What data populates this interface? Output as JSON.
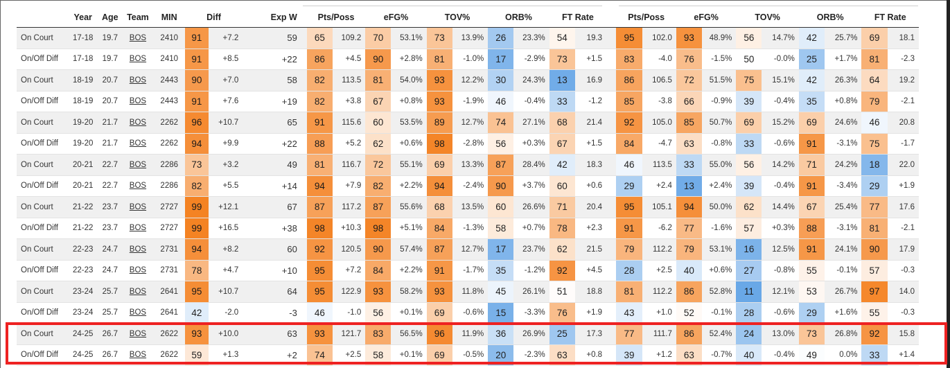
{
  "headers": [
    "",
    "Year",
    "Age",
    "Team",
    "MIN",
    "Diff",
    "",
    "Exp W",
    "Pts/Poss",
    "",
    "eFG%",
    "",
    "TOV%",
    "",
    "ORB%",
    "",
    "FT Rate",
    "",
    "Pts/Poss",
    "",
    "eFG%",
    "",
    "TOV%",
    "",
    "ORB%",
    "",
    "FT Rate",
    ""
  ],
  "rows": [
    {
      "label": "On Court",
      "year": "17-18",
      "age": "19.7",
      "team": "BOS",
      "min": "2410",
      "diff_pct": "91",
      "diff": "+7.2",
      "expw": "59",
      "cells": [
        [
          "65",
          "109.2"
        ],
        [
          "70",
          "53.1%"
        ],
        [
          "73",
          "13.9%"
        ],
        [
          "26",
          "23.3%"
        ],
        [
          "54",
          "19.3"
        ],
        [
          "95",
          "102.0"
        ],
        [
          "93",
          "48.9%"
        ],
        [
          "56",
          "14.7%"
        ],
        [
          "42",
          "25.7%"
        ],
        [
          "69",
          "18.1"
        ]
      ]
    },
    {
      "label": "On/Off Diff",
      "year": "17-18",
      "age": "19.7",
      "team": "BOS",
      "min": "2410",
      "diff_pct": "91",
      "diff": "+8.5",
      "expw": "+22",
      "cells": [
        [
          "86",
          "+4.5"
        ],
        [
          "90",
          "+2.8%"
        ],
        [
          "81",
          "-1.0%"
        ],
        [
          "17",
          "-2.9%"
        ],
        [
          "73",
          "+1.5"
        ],
        [
          "83",
          "-4.0"
        ],
        [
          "76",
          "-1.5%"
        ],
        [
          "50",
          "-0.0%"
        ],
        [
          "25",
          "+1.7%"
        ],
        [
          "81",
          "-2.3"
        ]
      ]
    },
    {
      "label": "On Court",
      "year": "18-19",
      "age": "20.7",
      "team": "BOS",
      "min": "2443",
      "diff_pct": "90",
      "diff": "+7.0",
      "expw": "58",
      "cells": [
        [
          "82",
          "113.5"
        ],
        [
          "81",
          "54.0%"
        ],
        [
          "93",
          "12.2%"
        ],
        [
          "30",
          "24.3%"
        ],
        [
          "13",
          "16.9"
        ],
        [
          "86",
          "106.5"
        ],
        [
          "72",
          "51.5%"
        ],
        [
          "75",
          "15.1%"
        ],
        [
          "42",
          "26.3%"
        ],
        [
          "64",
          "19.2"
        ]
      ]
    },
    {
      "label": "On/Off Diff",
      "year": "18-19",
      "age": "20.7",
      "team": "BOS",
      "min": "2443",
      "diff_pct": "91",
      "diff": "+7.6",
      "expw": "+19",
      "cells": [
        [
          "82",
          "+3.8"
        ],
        [
          "67",
          "+0.8%"
        ],
        [
          "93",
          "-1.9%"
        ],
        [
          "46",
          "-0.4%"
        ],
        [
          "33",
          "-1.2"
        ],
        [
          "85",
          "-3.8"
        ],
        [
          "66",
          "-0.9%"
        ],
        [
          "39",
          "-0.4%"
        ],
        [
          "35",
          "+0.8%"
        ],
        [
          "79",
          "-2.1"
        ]
      ]
    },
    {
      "label": "On Court",
      "year": "19-20",
      "age": "21.7",
      "team": "BOS",
      "min": "2262",
      "diff_pct": "96",
      "diff": "+10.7",
      "expw": "65",
      "cells": [
        [
          "91",
          "115.6"
        ],
        [
          "60",
          "53.5%"
        ],
        [
          "89",
          "12.7%"
        ],
        [
          "74",
          "27.1%"
        ],
        [
          "68",
          "21.4"
        ],
        [
          "92",
          "105.0"
        ],
        [
          "85",
          "50.7%"
        ],
        [
          "69",
          "15.2%"
        ],
        [
          "69",
          "24.6%"
        ],
        [
          "46",
          "20.8"
        ]
      ]
    },
    {
      "label": "On/Off Diff",
      "year": "19-20",
      "age": "21.7",
      "team": "BOS",
      "min": "2262",
      "diff_pct": "94",
      "diff": "+9.9",
      "expw": "+22",
      "cells": [
        [
          "88",
          "+5.2"
        ],
        [
          "62",
          "+0.6%"
        ],
        [
          "98",
          "-2.8%"
        ],
        [
          "56",
          "+0.3%"
        ],
        [
          "67",
          "+1.5"
        ],
        [
          "84",
          "-4.7"
        ],
        [
          "63",
          "-0.8%"
        ],
        [
          "33",
          "-0.6%"
        ],
        [
          "91",
          "-3.1%"
        ],
        [
          "75",
          "-1.7"
        ]
      ]
    },
    {
      "label": "On Court",
      "year": "20-21",
      "age": "22.7",
      "team": "BOS",
      "min": "2286",
      "diff_pct": "73",
      "diff": "+3.2",
      "expw": "49",
      "cells": [
        [
          "81",
          "116.7"
        ],
        [
          "72",
          "55.1%"
        ],
        [
          "69",
          "13.3%"
        ],
        [
          "87",
          "28.4%"
        ],
        [
          "42",
          "18.3"
        ],
        [
          "46",
          "113.5"
        ],
        [
          "33",
          "55.0%"
        ],
        [
          "56",
          "14.2%"
        ],
        [
          "71",
          "24.2%"
        ],
        [
          "18",
          "22.0"
        ]
      ]
    },
    {
      "label": "On/Off Diff",
      "year": "20-21",
      "age": "22.7",
      "team": "BOS",
      "min": "2286",
      "diff_pct": "82",
      "diff": "+5.5",
      "expw": "+14",
      "cells": [
        [
          "94",
          "+7.9"
        ],
        [
          "82",
          "+2.2%"
        ],
        [
          "94",
          "-2.4%"
        ],
        [
          "90",
          "+3.7%"
        ],
        [
          "60",
          "+0.6"
        ],
        [
          "29",
          "+2.4"
        ],
        [
          "13",
          "+2.4%"
        ],
        [
          "39",
          "-0.4%"
        ],
        [
          "91",
          "-3.4%"
        ],
        [
          "29",
          "+1.9"
        ]
      ]
    },
    {
      "label": "On Court",
      "year": "21-22",
      "age": "23.7",
      "team": "BOS",
      "min": "2727",
      "diff_pct": "99",
      "diff": "+12.1",
      "expw": "67",
      "cells": [
        [
          "87",
          "117.2"
        ],
        [
          "87",
          "55.6%"
        ],
        [
          "68",
          "13.5%"
        ],
        [
          "60",
          "26.6%"
        ],
        [
          "71",
          "20.4"
        ],
        [
          "95",
          "105.1"
        ],
        [
          "94",
          "50.0%"
        ],
        [
          "62",
          "14.4%"
        ],
        [
          "67",
          "25.4%"
        ],
        [
          "77",
          "17.6"
        ]
      ]
    },
    {
      "label": "On/Off Diff",
      "year": "21-22",
      "age": "23.7",
      "team": "BOS",
      "min": "2727",
      "diff_pct": "99",
      "diff": "+16.5",
      "expw": "+38",
      "cells": [
        [
          "98",
          "+10.3"
        ],
        [
          "98",
          "+5.1%"
        ],
        [
          "84",
          "-1.3%"
        ],
        [
          "58",
          "+0.7%"
        ],
        [
          "78",
          "+2.3"
        ],
        [
          "91",
          "-6.2"
        ],
        [
          "77",
          "-1.6%"
        ],
        [
          "57",
          "+0.3%"
        ],
        [
          "88",
          "-3.1%"
        ],
        [
          "81",
          "-2.1"
        ]
      ]
    },
    {
      "label": "On Court",
      "year": "22-23",
      "age": "24.7",
      "team": "BOS",
      "min": "2731",
      "diff_pct": "94",
      "diff": "+8.2",
      "expw": "60",
      "cells": [
        [
          "92",
          "120.5"
        ],
        [
          "90",
          "57.4%"
        ],
        [
          "87",
          "12.7%"
        ],
        [
          "17",
          "23.7%"
        ],
        [
          "62",
          "21.5"
        ],
        [
          "79",
          "112.2"
        ],
        [
          "79",
          "53.1%"
        ],
        [
          "16",
          "12.5%"
        ],
        [
          "91",
          "24.1%"
        ],
        [
          "90",
          "17.9"
        ]
      ]
    },
    {
      "label": "On/Off Diff",
      "year": "22-23",
      "age": "24.7",
      "team": "BOS",
      "min": "2731",
      "diff_pct": "78",
      "diff": "+4.7",
      "expw": "+10",
      "cells": [
        [
          "95",
          "+7.2"
        ],
        [
          "84",
          "+2.2%"
        ],
        [
          "91",
          "-1.7%"
        ],
        [
          "35",
          "-1.2%"
        ],
        [
          "92",
          "+4.5"
        ],
        [
          "28",
          "+2.5"
        ],
        [
          "40",
          "+0.6%"
        ],
        [
          "27",
          "-0.8%"
        ],
        [
          "55",
          "-0.1%"
        ],
        [
          "57",
          "-0.3"
        ]
      ]
    },
    {
      "label": "On Court",
      "year": "23-24",
      "age": "25.7",
      "team": "BOS",
      "min": "2641",
      "diff_pct": "95",
      "diff": "+10.7",
      "expw": "64",
      "cells": [
        [
          "95",
          "122.9"
        ],
        [
          "93",
          "58.2%"
        ],
        [
          "93",
          "11.8%"
        ],
        [
          "45",
          "26.1%"
        ],
        [
          "51",
          "18.8"
        ],
        [
          "81",
          "112.2"
        ],
        [
          "86",
          "52.8%"
        ],
        [
          "11",
          "12.1%"
        ],
        [
          "53",
          "26.7%"
        ],
        [
          "97",
          "14.0"
        ]
      ]
    },
    {
      "label": "On/Off Diff",
      "year": "23-24",
      "age": "25.7",
      "team": "BOS",
      "min": "2641",
      "diff_pct": "42",
      "diff": "-2.0",
      "expw": "-3",
      "cells": [
        [
          "46",
          "-1.0"
        ],
        [
          "56",
          "+0.1%"
        ],
        [
          "69",
          "-0.6%"
        ],
        [
          "15",
          "-3.3%"
        ],
        [
          "76",
          "+1.9"
        ],
        [
          "43",
          "+1.0"
        ],
        [
          "52",
          "-0.1%"
        ],
        [
          "28",
          "-0.6%"
        ],
        [
          "29",
          "+1.6%"
        ],
        [
          "55",
          "-0.3"
        ]
      ]
    },
    {
      "label": "On Court",
      "year": "24-25",
      "age": "26.7",
      "team": "BOS",
      "min": "2622",
      "diff_pct": "93",
      "diff": "+10.0",
      "expw": "63",
      "cells": [
        [
          "93",
          "121.7"
        ],
        [
          "83",
          "56.5%"
        ],
        [
          "96",
          "11.9%"
        ],
        [
          "36",
          "26.9%"
        ],
        [
          "25",
          "17.3"
        ],
        [
          "77",
          "111.7"
        ],
        [
          "86",
          "52.4%"
        ],
        [
          "24",
          "13.0%"
        ],
        [
          "73",
          "26.8%"
        ],
        [
          "92",
          "15.8"
        ]
      ]
    },
    {
      "label": "On/Off Diff",
      "year": "24-25",
      "age": "26.7",
      "team": "BOS",
      "min": "2622",
      "diff_pct": "59",
      "diff": "+1.3",
      "expw": "+2",
      "cells": [
        [
          "74",
          "+2.5"
        ],
        [
          "58",
          "+0.1%"
        ],
        [
          "69",
          "-0.5%"
        ],
        [
          "20",
          "-2.3%"
        ],
        [
          "63",
          "+0.8"
        ],
        [
          "39",
          "+1.2"
        ],
        [
          "63",
          "-0.7%"
        ],
        [
          "40",
          "-0.4%"
        ],
        [
          "49",
          "0.0%"
        ],
        [
          "33",
          "+1.4"
        ]
      ]
    }
  ],
  "colors": {
    "orange": "#f4801f",
    "blue": "#3f8fe0",
    "neutral": "#ffffff",
    "highlight": "#ee2222"
  }
}
